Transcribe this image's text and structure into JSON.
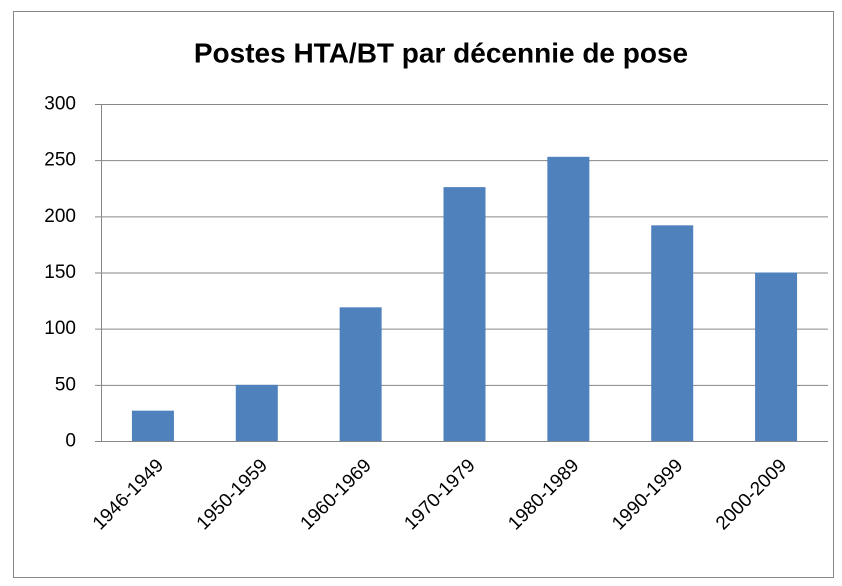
{
  "chart_data": {
    "type": "bar",
    "title": "Postes HTA/BT par décennie de pose",
    "categories": [
      "1946-1949",
      "1950-1959",
      "1960-1969",
      "1970-1979",
      "1980-1989",
      "1990-1999",
      "2000-2009"
    ],
    "values": [
      27,
      50,
      119,
      226,
      253,
      192,
      150
    ],
    "color": "#4f81bd",
    "ylim": [
      0,
      300
    ],
    "yticks": [
      0,
      50,
      100,
      150,
      200,
      250,
      300
    ],
    "grid": true
  }
}
